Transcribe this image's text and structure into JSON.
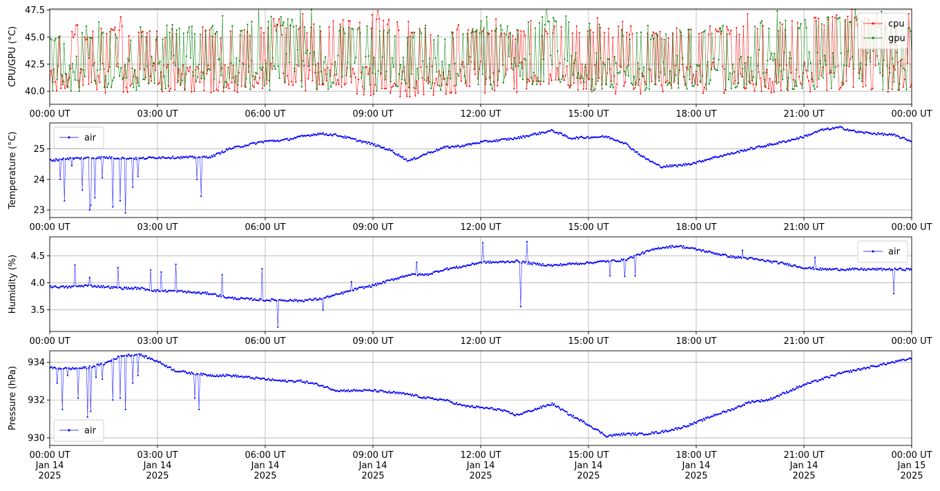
{
  "chart_data": [
    {
      "type": "line",
      "ylabel": "CPU/GPU (°C)",
      "ylim": [
        38.8,
        47.6
      ],
      "xlim": [
        "2025-01-14 00:00",
        "2025-01-15 00:00"
      ],
      "yticks": [
        "40.0",
        "42.5",
        "45.0",
        "47.5"
      ],
      "ytick_values": [
        40.0,
        42.5,
        45.0,
        47.5
      ],
      "legend_position": "upper right",
      "grid": true,
      "x_hours": [
        0,
        1,
        2,
        3,
        4,
        5,
        6,
        7,
        8,
        9,
        10,
        11,
        12,
        13,
        14,
        15,
        16,
        17,
        18,
        19,
        20,
        21,
        22,
        23,
        24
      ],
      "series": [
        {
          "name": "cpu",
          "color": "#ff0000",
          "values": [
            41.5,
            41.8,
            41.9,
            41.7,
            41.8,
            41.7,
            41.9,
            41.8,
            41.6,
            41.5,
            41.4,
            41.6,
            41.8,
            41.9,
            42.0,
            41.8,
            41.6,
            41.5,
            41.7,
            41.9,
            42.1,
            42.0,
            42.2,
            42.1,
            42.0
          ],
          "range_low": [
            39.8,
            39.9,
            39.8,
            39.8,
            39.9,
            39.8,
            39.8,
            39.9,
            39.8,
            39.6,
            39.4,
            39.7,
            39.8,
            39.9,
            40.6,
            39.8,
            39.7,
            39.8,
            39.8,
            39.8,
            39.7,
            39.8,
            39.8,
            39.8,
            39.8
          ],
          "range_high": [
            45.6,
            45.6,
            46.1,
            45.6,
            46.1,
            45.6,
            46.1,
            46.1,
            46.7,
            47.1,
            46.1,
            45.6,
            46.1,
            45.6,
            46.1,
            46.1,
            45.6,
            45.6,
            46.1,
            46.1,
            46.1,
            46.7,
            47.1,
            46.7,
            46.1
          ]
        },
        {
          "name": "gpu",
          "color": "#008000",
          "values": [
            42.0,
            42.2,
            42.3,
            42.1,
            42.4,
            42.3,
            42.6,
            42.8,
            42.4,
            42.2,
            42.0,
            42.1,
            42.3,
            42.6,
            42.8,
            42.5,
            42.2,
            42.0,
            42.4,
            42.6,
            42.8,
            42.7,
            42.9,
            42.7,
            42.5
          ],
          "range_low": [
            39.9,
            40.0,
            40.1,
            39.9,
            40.0,
            40.1,
            40.0,
            40.1,
            40.0,
            39.9,
            39.9,
            40.0,
            40.1,
            40.2,
            40.7,
            40.1,
            39.9,
            39.8,
            40.0,
            40.1,
            40.2,
            40.1,
            40.2,
            40.1,
            40.0
          ],
          "range_high": [
            45.1,
            45.6,
            45.6,
            45.6,
            46.1,
            46.1,
            47.2,
            46.7,
            46.1,
            46.1,
            45.6,
            45.6,
            46.1,
            46.1,
            47.2,
            46.7,
            45.6,
            45.6,
            46.1,
            46.1,
            46.7,
            46.7,
            47.2,
            46.7,
            46.1
          ]
        }
      ]
    },
    {
      "type": "line",
      "ylabel": "Temperature (°C)",
      "ylim": [
        22.75,
        25.85
      ],
      "xlim": [
        "2025-01-14 00:00",
        "2025-01-15 00:00"
      ],
      "yticks": [
        "23",
        "24",
        "25"
      ],
      "ytick_values": [
        23,
        24,
        25
      ],
      "legend_position": "upper left",
      "grid": true,
      "x_hours": [
        0,
        0.5,
        1,
        1.5,
        2,
        2.5,
        3,
        3.5,
        4,
        4.5,
        5,
        5.5,
        6,
        6.5,
        7,
        7.5,
        8,
        8.5,
        9,
        9.5,
        10,
        10.5,
        11,
        11.5,
        12,
        12.5,
        13,
        13.5,
        14,
        14.5,
        15,
        15.5,
        16,
        16.5,
        17,
        17.5,
        18,
        18.5,
        19,
        19.5,
        20,
        20.5,
        21,
        21.5,
        22,
        22.5,
        23,
        23.5,
        24
      ],
      "series": [
        {
          "name": "air",
          "color": "#0000ff",
          "values": [
            24.62,
            24.68,
            24.7,
            24.72,
            24.7,
            24.68,
            24.72,
            24.72,
            24.72,
            24.74,
            25.0,
            25.13,
            25.25,
            25.28,
            25.4,
            25.5,
            25.45,
            25.3,
            25.15,
            24.95,
            24.6,
            24.85,
            25.05,
            25.1,
            25.22,
            25.28,
            25.35,
            25.48,
            25.6,
            25.35,
            25.38,
            25.4,
            25.2,
            24.75,
            24.42,
            24.45,
            24.55,
            24.72,
            24.85,
            25.0,
            25.12,
            25.25,
            25.4,
            25.62,
            25.7,
            25.55,
            25.5,
            25.45,
            25.25
          ],
          "spikes": [
            {
              "x": 0.3,
              "y": 24.0
            },
            {
              "x": 0.4,
              "y": 23.3
            },
            {
              "x": 0.6,
              "y": 24.45
            },
            {
              "x": 0.9,
              "y": 23.65
            },
            {
              "x": 1.1,
              "y": 23.0
            },
            {
              "x": 1.15,
              "y": 23.15
            },
            {
              "x": 1.25,
              "y": 23.4
            },
            {
              "x": 1.45,
              "y": 24.05
            },
            {
              "x": 1.75,
              "y": 23.1
            },
            {
              "x": 1.95,
              "y": 23.3
            },
            {
              "x": 2.1,
              "y": 22.9
            },
            {
              "x": 2.3,
              "y": 23.75
            },
            {
              "x": 2.45,
              "y": 24.1
            },
            {
              "x": 4.1,
              "y": 24.0
            },
            {
              "x": 4.2,
              "y": 23.45
            }
          ]
        }
      ]
    },
    {
      "type": "line",
      "ylabel": "Humidity (%)",
      "ylim": [
        3.1,
        4.85
      ],
      "xlim": [
        "2025-01-14 00:00",
        "2025-01-15 00:00"
      ],
      "yticks": [
        "3.5",
        "4.0",
        "4.5"
      ],
      "ytick_values": [
        3.5,
        4.0,
        4.5
      ],
      "legend_position": "upper right",
      "grid": true,
      "x_hours": [
        0,
        0.5,
        1,
        1.5,
        2,
        2.5,
        3,
        3.5,
        4,
        4.5,
        5,
        5.5,
        6,
        6.5,
        7,
        7.5,
        8,
        8.5,
        9,
        9.5,
        10,
        10.5,
        11,
        11.5,
        12,
        12.5,
        13,
        13.5,
        14,
        14.5,
        15,
        15.5,
        16,
        16.5,
        17,
        17.5,
        18,
        18.5,
        19,
        19.5,
        20,
        20.5,
        21,
        21.5,
        22,
        22.5,
        23,
        23.5,
        24
      ],
      "series": [
        {
          "name": "air",
          "color": "#0000ff",
          "values": [
            3.93,
            3.92,
            3.95,
            3.93,
            3.9,
            3.9,
            3.85,
            3.85,
            3.82,
            3.8,
            3.72,
            3.7,
            3.68,
            3.68,
            3.67,
            3.7,
            3.78,
            3.88,
            3.95,
            4.05,
            4.15,
            4.15,
            4.25,
            4.3,
            4.38,
            4.38,
            4.4,
            4.35,
            4.32,
            4.35,
            4.37,
            4.4,
            4.42,
            4.55,
            4.65,
            4.68,
            4.62,
            4.55,
            4.48,
            4.45,
            4.4,
            4.35,
            4.28,
            4.25,
            4.25,
            4.25,
            4.25,
            4.25,
            4.25
          ],
          "spikes": [
            {
              "x": 0.7,
              "y": 4.33
            },
            {
              "x": 1.1,
              "y": 4.1
            },
            {
              "x": 1.9,
              "y": 4.28
            },
            {
              "x": 2.8,
              "y": 4.24
            },
            {
              "x": 3.1,
              "y": 4.2
            },
            {
              "x": 3.5,
              "y": 4.34
            },
            {
              "x": 4.8,
              "y": 4.15
            },
            {
              "x": 5.9,
              "y": 4.26
            },
            {
              "x": 6.35,
              "y": 3.18
            },
            {
              "x": 7.6,
              "y": 3.5
            },
            {
              "x": 8.4,
              "y": 4.02
            },
            {
              "x": 10.2,
              "y": 4.38
            },
            {
              "x": 12.05,
              "y": 4.74
            },
            {
              "x": 13.1,
              "y": 3.56
            },
            {
              "x": 13.3,
              "y": 4.76
            },
            {
              "x": 15.6,
              "y": 4.13
            },
            {
              "x": 16.0,
              "y": 4.12
            },
            {
              "x": 16.3,
              "y": 4.13
            },
            {
              "x": 19.3,
              "y": 4.6
            },
            {
              "x": 21.3,
              "y": 4.47
            },
            {
              "x": 23.5,
              "y": 3.8
            }
          ]
        }
      ]
    },
    {
      "type": "line",
      "ylabel": "Pressure (hPa)",
      "ylim": [
        929.6,
        934.6
      ],
      "xlim": [
        "2025-01-14 00:00",
        "2025-01-15 00:00"
      ],
      "yticks": [
        "930",
        "932",
        "934"
      ],
      "ytick_values": [
        930,
        932,
        934
      ],
      "legend_position": "lower left",
      "grid": true,
      "x_hours": [
        0,
        0.5,
        1,
        1.5,
        2,
        2.5,
        3,
        3.5,
        4,
        4.5,
        5,
        5.5,
        6,
        6.5,
        7,
        7.5,
        8,
        8.5,
        9,
        9.5,
        10,
        10.5,
        11,
        11.5,
        12,
        12.5,
        13,
        13.5,
        14,
        14.5,
        15,
        15.5,
        16,
        16.5,
        17,
        17.5,
        18,
        18.5,
        19,
        19.5,
        20,
        20.5,
        21,
        21.5,
        22,
        22.5,
        23,
        23.5,
        24
      ],
      "series": [
        {
          "name": "air",
          "color": "#0000ff",
          "values": [
            933.7,
            933.65,
            933.7,
            933.9,
            934.35,
            934.4,
            934.05,
            933.55,
            933.4,
            933.3,
            933.3,
            933.2,
            933.1,
            933.0,
            933.0,
            932.8,
            932.5,
            932.5,
            932.5,
            932.4,
            932.3,
            932.1,
            932.0,
            931.7,
            931.6,
            931.5,
            931.2,
            931.5,
            931.8,
            931.2,
            930.7,
            930.1,
            930.2,
            930.2,
            930.3,
            930.5,
            930.8,
            931.2,
            931.5,
            931.9,
            932.0,
            932.4,
            932.8,
            933.1,
            933.4,
            933.6,
            933.8,
            934.0,
            934.2
          ],
          "spikes": [
            {
              "x": 0.2,
              "y": 932.9
            },
            {
              "x": 0.35,
              "y": 931.5
            },
            {
              "x": 0.5,
              "y": 933.3
            },
            {
              "x": 0.8,
              "y": 932.1
            },
            {
              "x": 1.05,
              "y": 931.1
            },
            {
              "x": 1.15,
              "y": 931.4
            },
            {
              "x": 1.3,
              "y": 933.2
            },
            {
              "x": 1.45,
              "y": 933.1
            },
            {
              "x": 1.75,
              "y": 932.0
            },
            {
              "x": 1.95,
              "y": 932.1
            },
            {
              "x": 2.1,
              "y": 931.5
            },
            {
              "x": 2.3,
              "y": 932.9
            },
            {
              "x": 2.45,
              "y": 933.3
            },
            {
              "x": 4.05,
              "y": 932.1
            },
            {
              "x": 4.15,
              "y": 931.5
            }
          ]
        }
      ]
    }
  ],
  "x_ticks": [
    "00:00 UT",
    "03:00 UT",
    "06:00 UT",
    "09:00 UT",
    "12:00 UT",
    "15:00 UT",
    "18:00 UT",
    "21:00 UT",
    "00:00 UT"
  ],
  "x_ticks_dates_line1": [
    "Jan 14",
    "Jan 14",
    "Jan 14",
    "Jan 14",
    "Jan 14",
    "Jan 14",
    "Jan 14",
    "Jan 14",
    "Jan 15"
  ],
  "x_ticks_dates_line2": [
    "2025",
    "2025",
    "2025",
    "2025",
    "2025",
    "2025",
    "2025",
    "2025",
    "2025"
  ]
}
